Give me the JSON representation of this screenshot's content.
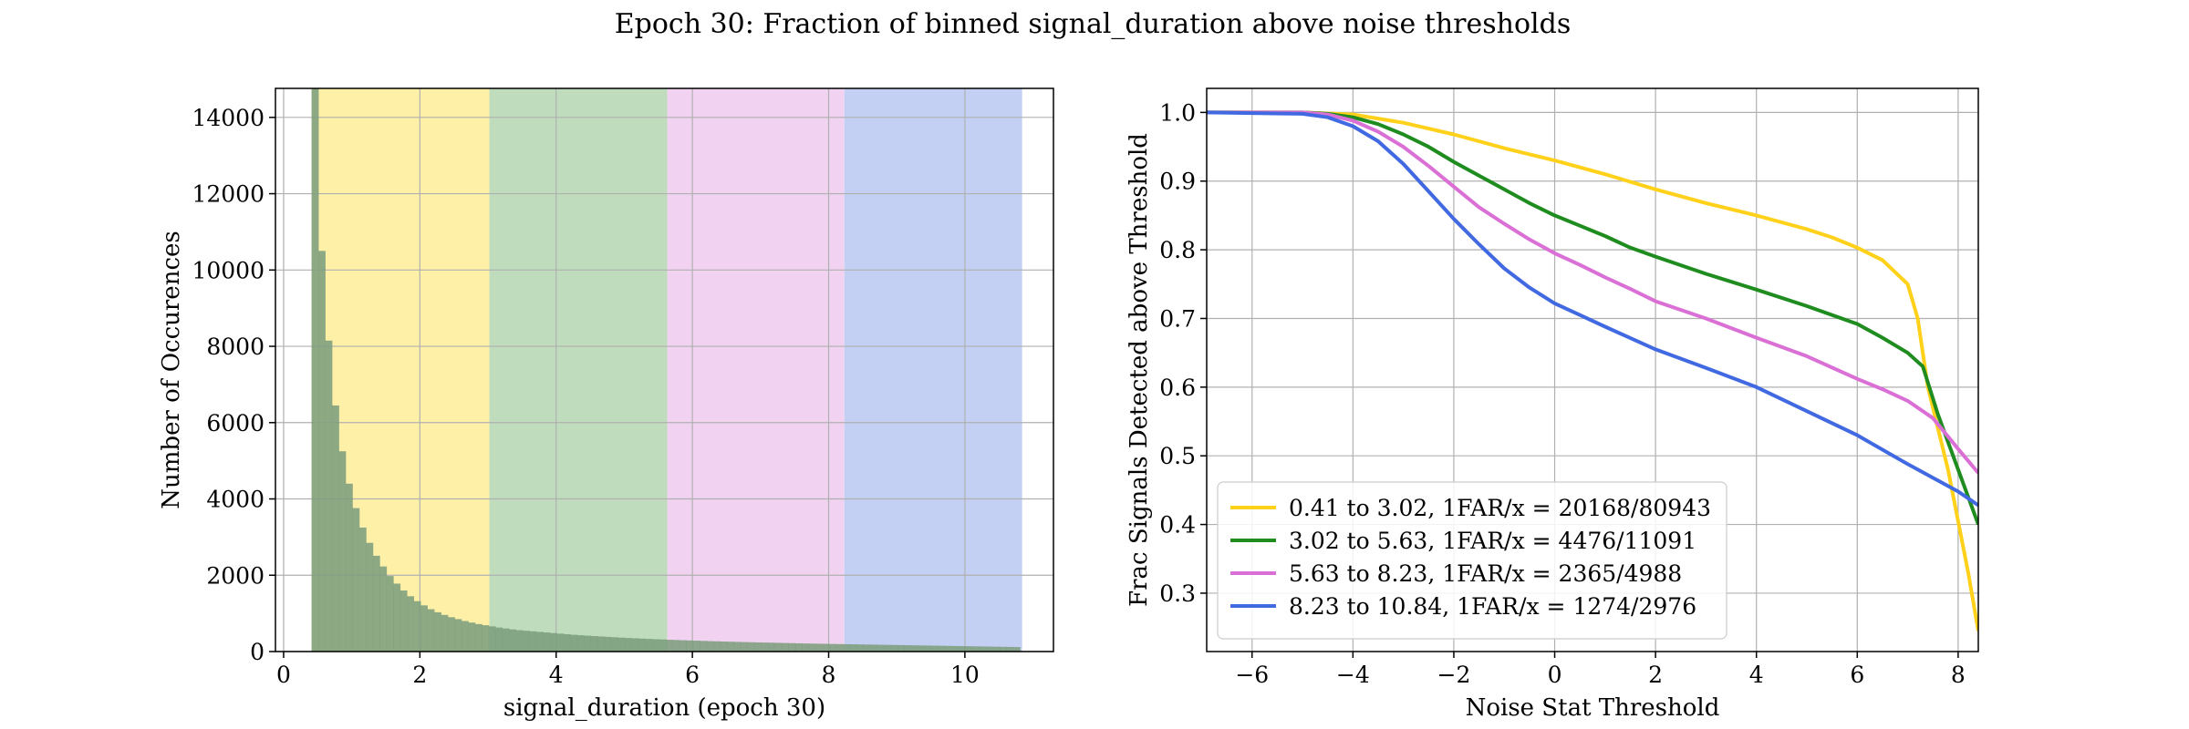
{
  "figure": {
    "title": "Epoch 30: Fraction of binned signal_duration above noise thresholds"
  },
  "chart_data": [
    {
      "type": "bar",
      "subtype": "histogram",
      "xlabel": "signal_duration (epoch 30)",
      "ylabel": "Number of Occurences",
      "xlim": [
        -0.12,
        11.3
      ],
      "ylim": [
        0,
        14760
      ],
      "xticks": [
        0,
        2,
        4,
        6,
        8,
        10
      ],
      "yticks": [
        0,
        2000,
        4000,
        6000,
        8000,
        10000,
        12000,
        14000
      ],
      "grid": true,
      "bin_start": 0.41,
      "bin_width": 0.1,
      "bar_color": "#7d9e7d",
      "values": [
        14760,
        10500,
        8150,
        6450,
        5250,
        4400,
        3760,
        3250,
        2850,
        2510,
        2230,
        1980,
        1780,
        1600,
        1450,
        1320,
        1210,
        1110,
        1030,
        960,
        900,
        850,
        800,
        760,
        720,
        690,
        660,
        630,
        605,
        580,
        560,
        545,
        530,
        515,
        500,
        485,
        470,
        455,
        440,
        428,
        416,
        405,
        395,
        385,
        375,
        365,
        356,
        348,
        340,
        332,
        324,
        317,
        310,
        303,
        297,
        291,
        285,
        279,
        273,
        268,
        263,
        258,
        253,
        248,
        244,
        240,
        236,
        232,
        228,
        224,
        220,
        216,
        212,
        208,
        205,
        202,
        199,
        196,
        193,
        190,
        187,
        184,
        181,
        178,
        175,
        172,
        169,
        166,
        163,
        160,
        157,
        154,
        151,
        148,
        145,
        142,
        139,
        136,
        133,
        130,
        127,
        124,
        121,
        118
      ],
      "regions": [
        {
          "range": [
            0.41,
            3.02
          ],
          "color": "#fff0a8"
        },
        {
          "range": [
            3.02,
            5.63
          ],
          "color": "#bfddbd"
        },
        {
          "range": [
            5.63,
            8.23
          ],
          "color": "#f1d3f1"
        },
        {
          "range": [
            8.23,
            10.84
          ],
          "color": "#c3d0f3"
        }
      ]
    },
    {
      "type": "line",
      "xlabel": "Noise Stat Threshold",
      "ylabel": "Frac Signals Detected above Threshold",
      "xlim": [
        -6.9,
        8.4
      ],
      "ylim": [
        0.215,
        1.035
      ],
      "xticks": [
        -6,
        -4,
        -2,
        0,
        2,
        4,
        6,
        8
      ],
      "yticks": [
        0.3,
        0.4,
        0.5,
        0.6,
        0.7,
        0.8,
        0.9,
        1.0
      ],
      "ytick_labels": [
        "0.3",
        "0.4",
        "0.5",
        "0.6",
        "0.7",
        "0.8",
        "0.9",
        "1.0"
      ],
      "grid": true,
      "legend_position": "lower-left",
      "series": [
        {
          "name": "0.41 to 3.02, 1FAR/x = 20168/80943",
          "color": "#ffd11a",
          "x": [
            -6.9,
            -5,
            -4,
            -3,
            -2,
            -1,
            0,
            1,
            2,
            3,
            4,
            5,
            5.5,
            6,
            6.5,
            7,
            7.2,
            7.4,
            7.8,
            8.2,
            8.4
          ],
          "y": [
            1.0,
            1.0,
            0.997,
            0.985,
            0.968,
            0.948,
            0.93,
            0.91,
            0.888,
            0.868,
            0.85,
            0.83,
            0.818,
            0.803,
            0.785,
            0.75,
            0.7,
            0.6,
            0.48,
            0.33,
            0.245
          ]
        },
        {
          "name": "3.02 to 5.63, 1FAR/x = 4476/11091",
          "color": "#1f8c1f",
          "x": [
            -6.9,
            -5,
            -4.5,
            -4,
            -3.5,
            -3,
            -2.5,
            -2,
            -1.5,
            -1,
            -0.5,
            0,
            0.5,
            1,
            1.5,
            2,
            3,
            4,
            5,
            6,
            6.5,
            7,
            7.3,
            7.6,
            8,
            8.4
          ],
          "y": [
            1.0,
            1.0,
            0.998,
            0.993,
            0.983,
            0.968,
            0.95,
            0.928,
            0.908,
            0.888,
            0.868,
            0.85,
            0.835,
            0.82,
            0.803,
            0.79,
            0.765,
            0.742,
            0.718,
            0.692,
            0.672,
            0.65,
            0.63,
            0.56,
            0.48,
            0.4
          ]
        },
        {
          "name": "5.63 to 8.23, 1FAR/x = 2365/4988",
          "color": "#da70d6",
          "x": [
            -6.9,
            -5,
            -4.5,
            -4,
            -3.5,
            -3,
            -2.5,
            -2,
            -1.5,
            -1,
            -0.5,
            0,
            0.5,
            1,
            1.5,
            2,
            3,
            4,
            5,
            6,
            6.5,
            7,
            7.5,
            8,
            8.4
          ],
          "y": [
            1.0,
            1.0,
            0.997,
            0.988,
            0.972,
            0.95,
            0.922,
            0.892,
            0.862,
            0.838,
            0.815,
            0.795,
            0.778,
            0.76,
            0.743,
            0.725,
            0.7,
            0.672,
            0.645,
            0.612,
            0.597,
            0.58,
            0.555,
            0.51,
            0.475
          ]
        },
        {
          "name": "8.23 to 10.84, 1FAR/x = 1274/2976",
          "color": "#4169e1",
          "x": [
            -6.9,
            -5,
            -4.5,
            -4,
            -3.5,
            -3,
            -2.5,
            -2,
            -1.5,
            -1,
            -0.5,
            0,
            0.5,
            1,
            2,
            3,
            4,
            5,
            6,
            7,
            8,
            8.4
          ],
          "y": [
            1.0,
            0.998,
            0.993,
            0.98,
            0.958,
            0.925,
            0.885,
            0.845,
            0.808,
            0.773,
            0.745,
            0.722,
            0.705,
            0.688,
            0.655,
            0.628,
            0.6,
            0.565,
            0.53,
            0.488,
            0.448,
            0.428
          ]
        }
      ]
    }
  ]
}
